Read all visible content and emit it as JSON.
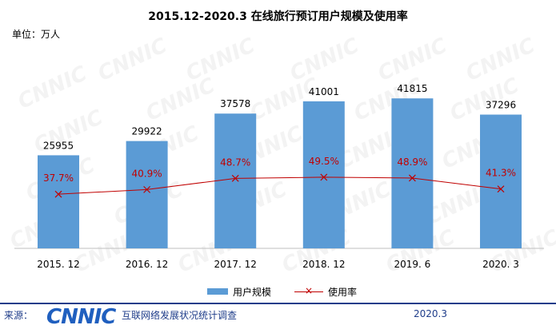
{
  "watermark_text": "CNNIC",
  "chart_data": {
    "type": "bar",
    "title": "2015.12-2020.3  在线旅行预订用户规模及使用率",
    "unit": "单位：万人",
    "categories": [
      "2015. 12",
      "2016. 12",
      "2017. 12",
      "2018. 12",
      "2019. 6",
      "2020. 3"
    ],
    "series": [
      {
        "name": "用户规模",
        "type": "bar",
        "color": "#5b9bd5",
        "values": [
          25955,
          29922,
          37578,
          41001,
          41815,
          37296
        ],
        "labels": [
          "25955",
          "29922",
          "37578",
          "41001",
          "41815",
          "37296"
        ]
      },
      {
        "name": "使用率",
        "type": "line",
        "color": "#c00000",
        "values": [
          37.7,
          40.9,
          48.7,
          49.5,
          48.9,
          41.3
        ],
        "labels": [
          "37.7%",
          "40.9%",
          "48.7%",
          "49.5%",
          "48.9%",
          "41.3%"
        ]
      }
    ],
    "legend": "bottom"
  },
  "legend": {
    "bar_label": "用户规模",
    "line_label": "使用率",
    "line_marker": "×"
  },
  "footer": {
    "source_label": "来源：",
    "logo_text": "CNNIC",
    "org_name": "互联网络发展状况统计调查",
    "date": "2020.3"
  }
}
